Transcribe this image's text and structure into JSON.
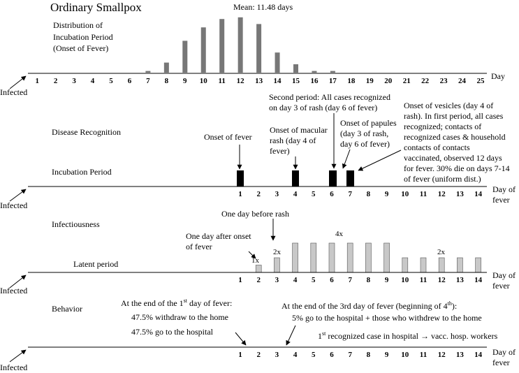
{
  "title": "Ordinary Smallpox",
  "mean_label": "Mean: 11.48 days",
  "colors": {
    "dark_bar": "#777777",
    "light_bar": "#c8c8c8",
    "black_bar": "#000000",
    "line": "#000000"
  },
  "panels": {
    "incubation_distribution": {
      "label_lines": [
        "Distribution of",
        "Incubation Period",
        "(Onset of Fever)"
      ],
      "axis_label": "Day",
      "origin_label": "Infected",
      "ticks": [
        "1",
        "2",
        "3",
        "4",
        "5",
        "6",
        "7",
        "8",
        "9",
        "10",
        "11",
        "12",
        "13",
        "14",
        "15",
        "16",
        "17",
        "18",
        "19",
        "20",
        "21",
        "22",
        "23",
        "24",
        "25"
      ]
    },
    "recognition": {
      "disease_recognition_label": "Disease Recognition",
      "incubation_period_label": "Incubation Period",
      "axis_label_lines": [
        "Day of",
        "fever"
      ],
      "origin_label": "Infected",
      "ticks": [
        "1",
        "2",
        "3",
        "4",
        "5",
        "6",
        "7",
        "8",
        "9",
        "10",
        "11",
        "12",
        "13",
        "14"
      ],
      "annotations": {
        "onset_fever": [
          "Onset of fever"
        ],
        "onset_macular": [
          "Onset of macular",
          "rash (day 4 of",
          "fever)"
        ],
        "second_period": [
          "Second period: All cases recognized",
          "on day 3 of rash (day 6 of fever)"
        ],
        "onset_papules": [
          "Onset of papules",
          "(day 3 of rash,",
          "day 6 of fever)"
        ],
        "onset_vesicles": [
          "Onset of vesicles (day 4 of",
          "rash).  In first period, all cases",
          "recognized; contacts of",
          "recognized cases & household",
          "contacts of contacts",
          "vaccinated, observed 12 days",
          "for fever. 30% die on days 7-14",
          "of fever (uniform dist.)"
        ]
      }
    },
    "infectiousness": {
      "label": "Infectiousness",
      "latent_label": "Latent period",
      "axis_label_lines": [
        "Day of",
        "fever"
      ],
      "origin_label": "Infected",
      "ticks": [
        "1",
        "2",
        "3",
        "4",
        "5",
        "6",
        "7",
        "8",
        "9",
        "10",
        "11",
        "12",
        "13",
        "14"
      ],
      "annotations": {
        "day_before_rash": "One day before rash",
        "day_after_onset": [
          "One day after onset",
          "of fever"
        ],
        "mult_1x": "1x",
        "mult_2x_a": "2x",
        "mult_4x": "4x",
        "mult_2x_b": "2x"
      }
    },
    "behavior": {
      "label": "Behavior",
      "axis_label_lines": [
        "Day of",
        "fever"
      ],
      "origin_label": "Infected",
      "ticks": [
        "1",
        "2",
        "3",
        "4",
        "5",
        "6",
        "7",
        "8",
        "9",
        "10",
        "11",
        "12",
        "13",
        "14"
      ],
      "end_first_day": {
        "prefix": "At the end of the 1",
        "sup": "st",
        "suffix": " day of fever:"
      },
      "withdraw": "47.5% withdraw to the home",
      "hospital": "47.5% go to the hospital",
      "end_third_day": {
        "prefix": "At the end of the 3rd day of fever (beginning of 4",
        "sup": "th",
        "suffix": "):"
      },
      "five_percent": "5% go to the hospital + those who withdrew to the home",
      "first_recognized": {
        "prefix": "1",
        "sup": "st",
        "suffix": " recognized case in hospital → vacc. hosp. workers"
      }
    }
  },
  "chart_data": [
    {
      "type": "bar",
      "title": "Distribution of Incubation Period (Onset of Fever)",
      "xlabel": "Day",
      "annotation": "Mean: 11.48 days",
      "categories": [
        7,
        8,
        9,
        10,
        11,
        12,
        13,
        14,
        15,
        16,
        17
      ],
      "values": [
        1,
        6,
        19,
        27,
        32,
        33,
        29,
        12,
        5,
        1,
        1
      ],
      "ylim": [
        0,
        35
      ]
    },
    {
      "type": "bar",
      "title": "Infectiousness",
      "xlabel": "Day of fever",
      "categories": [
        2,
        3,
        4,
        5,
        6,
        7,
        8,
        9,
        10,
        11,
        12,
        13,
        14
      ],
      "values": [
        1,
        2,
        4,
        4,
        4,
        4,
        4,
        4,
        2,
        2,
        2,
        2,
        2
      ],
      "labels": [
        "1x",
        "2x",
        "4x",
        "2x"
      ]
    }
  ]
}
